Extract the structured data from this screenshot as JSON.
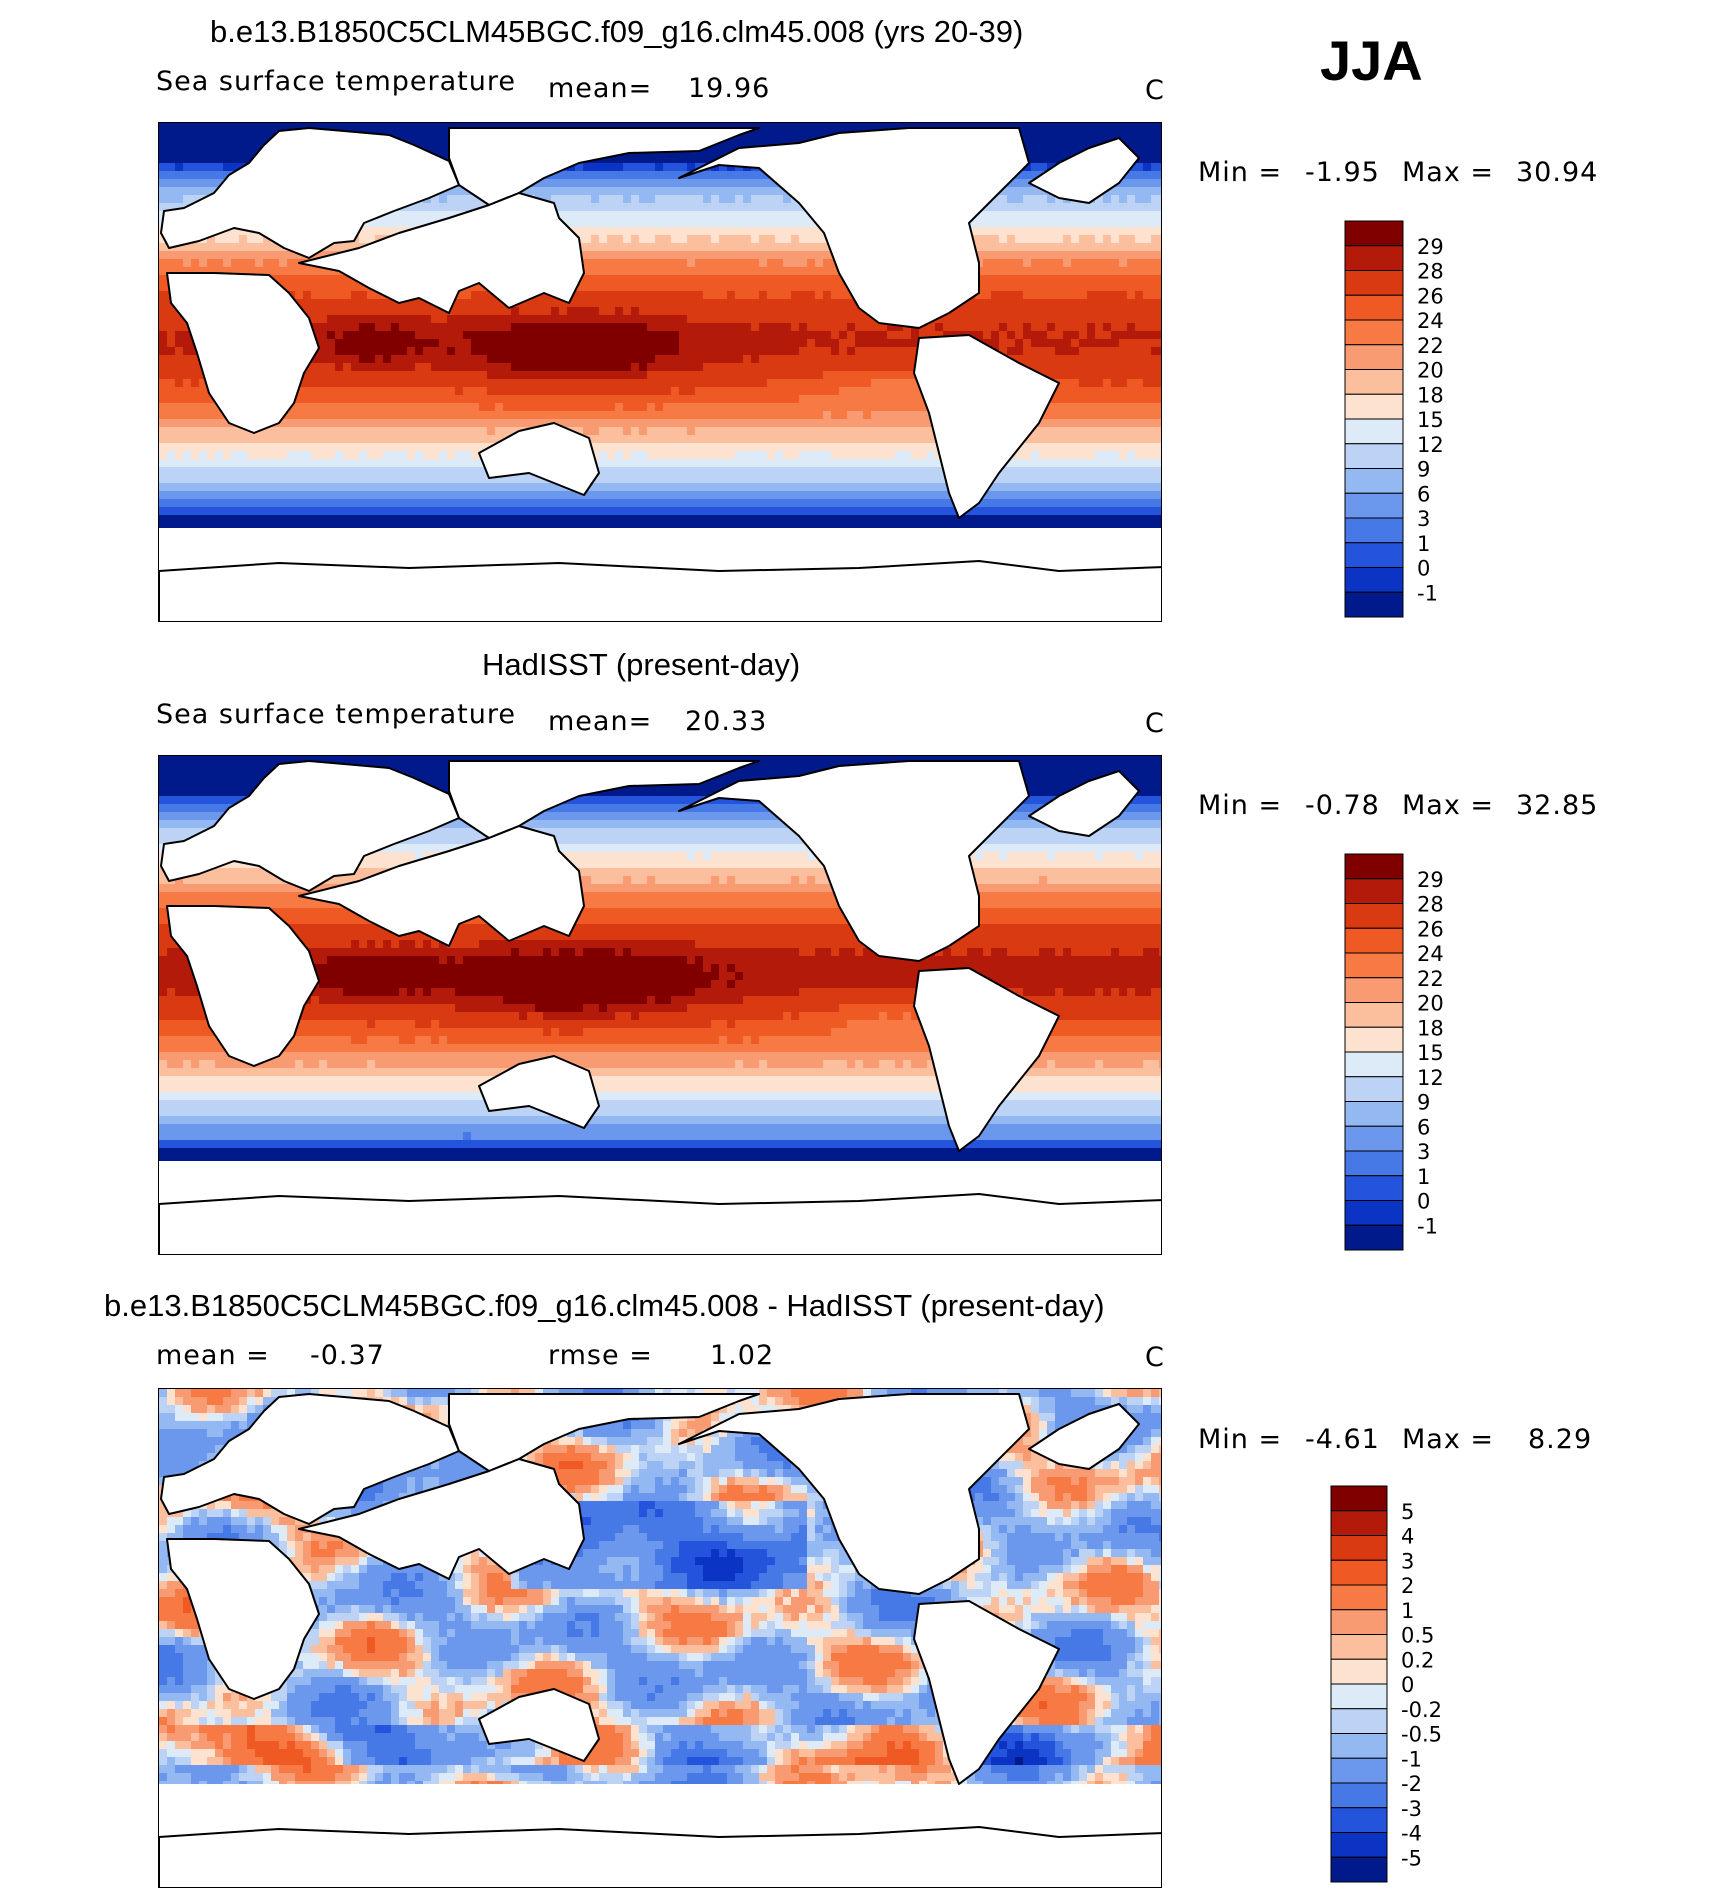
{
  "season": "JJA",
  "panels": [
    {
      "id": "model",
      "title": "b.e13.B1850C5CLM45BGC.f09_g16.clm45.008 (yrs 20-39)",
      "variable": "Sea surface temperature",
      "stat1_label": "mean=",
      "stat1_value": "19.96",
      "units": "C",
      "min_label": "Min =",
      "min_value": "-1.95",
      "max_label": "Max =",
      "max_value": "30.94"
    },
    {
      "id": "obs",
      "title": "HadISST (present-day)",
      "variable": "Sea surface temperature",
      "stat1_label": "mean=",
      "stat1_value": "20.33",
      "units": "C",
      "min_label": "Min =",
      "min_value": "-0.78",
      "max_label": "Max =",
      "max_value": "32.85"
    },
    {
      "id": "diff",
      "title": "b.e13.B1850C5CLM45BGC.f09_g16.clm45.008 - HadISST (present-day)",
      "stat1_label": "mean =",
      "stat1_value": "-0.37",
      "stat2_label": "rmse =",
      "stat2_value": "1.02",
      "units": "C",
      "min_label": "Min =",
      "min_value": "-4.61",
      "max_label": "Max =",
      "max_value": "8.29"
    }
  ],
  "chart_data": [
    {
      "type": "heatmap",
      "title": "b.e13.B1850C5CLM45BGC.f09_g16.clm45.008 (yrs 20-39)",
      "variable": "Sea surface temperature",
      "units": "C",
      "mean": 19.96,
      "min": -1.95,
      "max": 30.94,
      "colorbar_levels": [
        "29",
        "28",
        "26",
        "24",
        "22",
        "20",
        "18",
        "15",
        "12",
        "9",
        "6",
        "3",
        "1",
        "0",
        "-1"
      ],
      "colors": [
        "#800000",
        "#b31a0a",
        "#d93a12",
        "#ef5a24",
        "#f77a45",
        "#f89b72",
        "#fbbf9e",
        "#fde3cf",
        "#ddeaf7",
        "#bcd3f5",
        "#93b8f2",
        "#6b97ec",
        "#4678e6",
        "#2454dc",
        "#0b33c4",
        "#001a8c"
      ]
    },
    {
      "type": "heatmap",
      "title": "HadISST (present-day)",
      "variable": "Sea surface temperature",
      "units": "C",
      "mean": 20.33,
      "min": -0.78,
      "max": 32.85,
      "colorbar_levels": [
        "29",
        "28",
        "26",
        "24",
        "22",
        "20",
        "18",
        "15",
        "12",
        "9",
        "6",
        "3",
        "1",
        "0",
        "-1"
      ],
      "colors": [
        "#800000",
        "#b31a0a",
        "#d93a12",
        "#ef5a24",
        "#f77a45",
        "#f89b72",
        "#fbbf9e",
        "#fde3cf",
        "#ddeaf7",
        "#bcd3f5",
        "#93b8f2",
        "#6b97ec",
        "#4678e6",
        "#2454dc",
        "#0b33c4",
        "#001a8c"
      ]
    },
    {
      "type": "heatmap",
      "title": "b.e13.B1850C5CLM45BGC.f09_g16.clm45.008 - HadISST (present-day)",
      "units": "C",
      "mean": -0.37,
      "rmse": 1.02,
      "min": -4.61,
      "max": 8.29,
      "colorbar_levels": [
        "5",
        "4",
        "3",
        "2",
        "1",
        "0.5",
        "0.2",
        "0",
        "-0.2",
        "-0.5",
        "-1",
        "-2",
        "-3",
        "-4",
        "-5"
      ],
      "colors": [
        "#800000",
        "#b31a0a",
        "#d93a12",
        "#ef5a24",
        "#f77a45",
        "#f89b72",
        "#fbbf9e",
        "#fde3cf",
        "#ddeaf7",
        "#bcd3f5",
        "#93b8f2",
        "#6b97ec",
        "#4678e6",
        "#2454dc",
        "#0b33c4",
        "#001a8c"
      ]
    }
  ]
}
